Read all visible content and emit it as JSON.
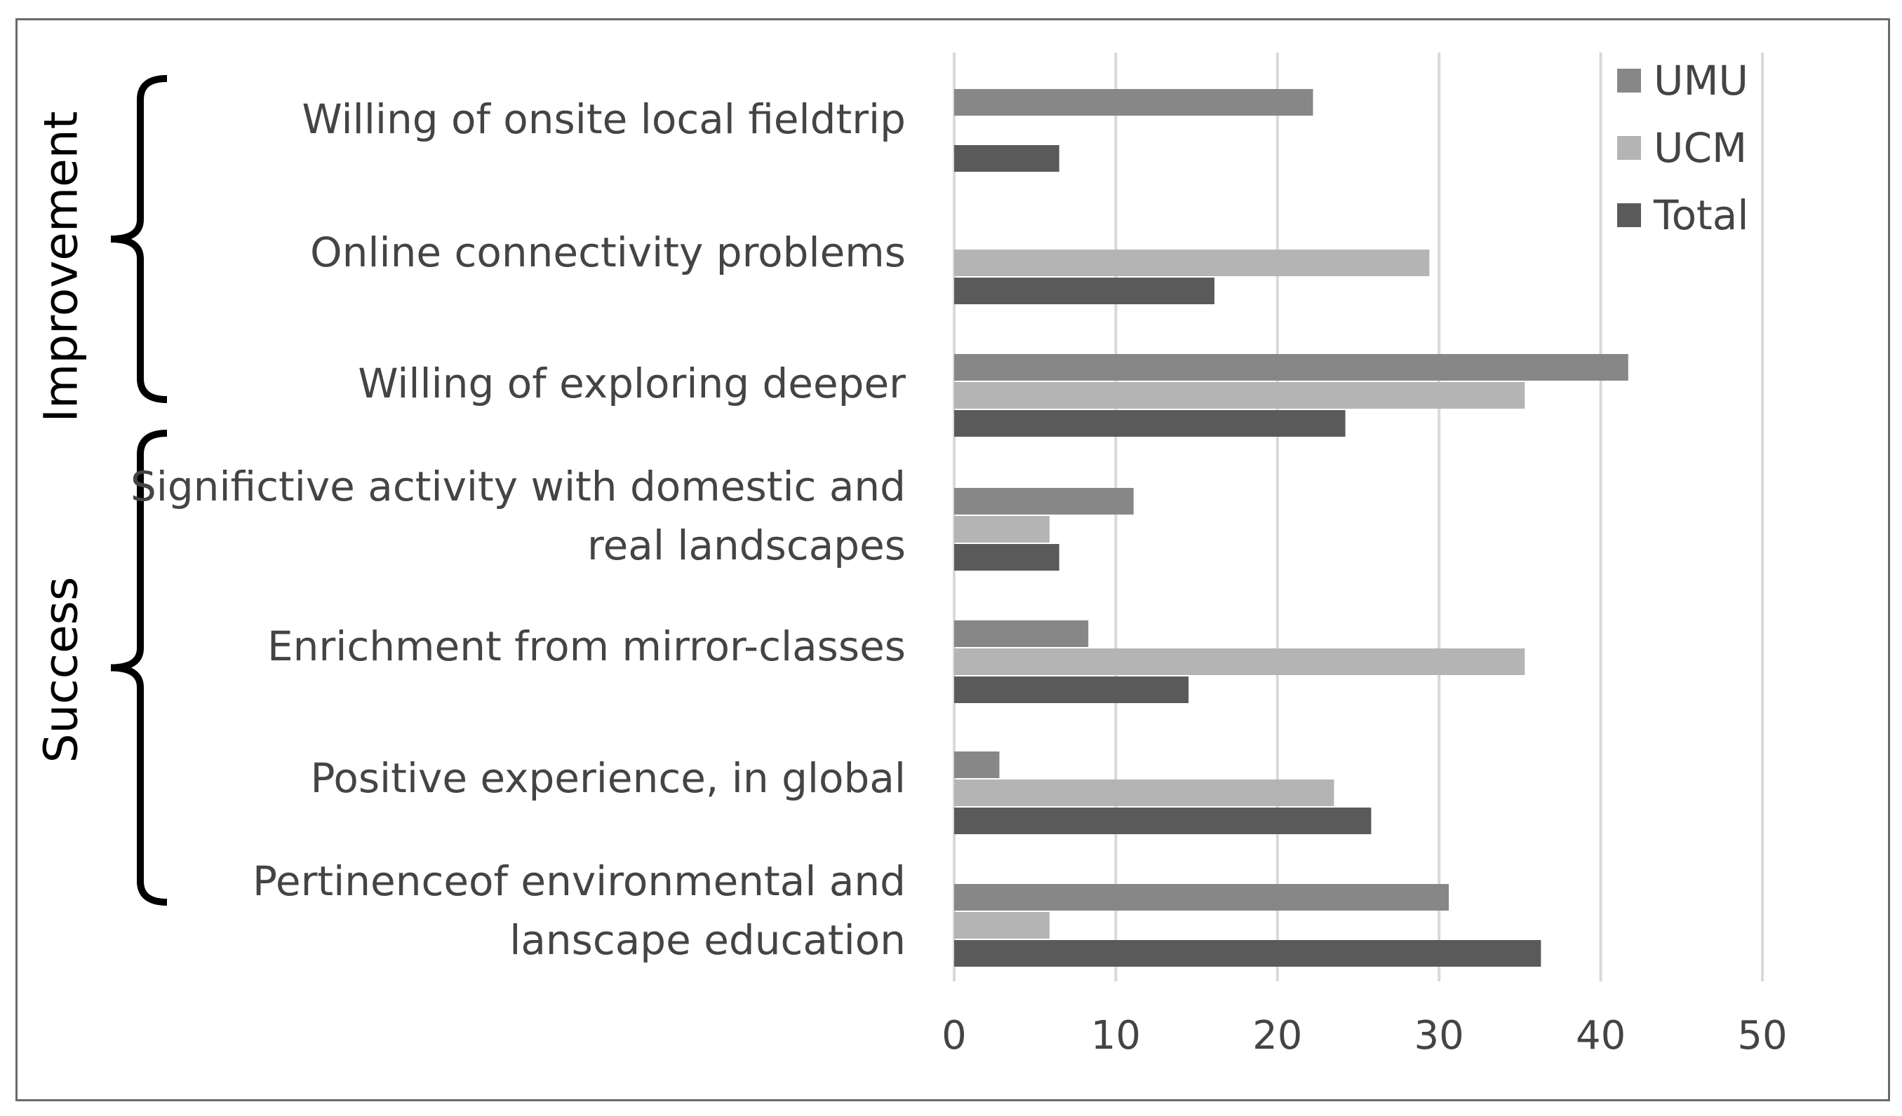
{
  "chart_data": {
    "type": "bar",
    "orientation": "horizontal",
    "categories": [
      "Willing of onsite local fieldtrip",
      "Online connectivity problems",
      "Willing of exploring deeper",
      "Significtive activity with domestic and\nreal landscapes",
      "Enrichment from mirror-classes",
      "Positive experience, in global",
      "Pertinenceof environmental and\nlanscape education"
    ],
    "series": [
      {
        "name": "UMU",
        "color": "#878787",
        "values": [
          22.2,
          0,
          41.7,
          11.1,
          8.3,
          2.8,
          30.6
        ]
      },
      {
        "name": "UCM",
        "color": "#b4b4b4",
        "values": [
          0,
          29.4,
          35.3,
          5.9,
          35.3,
          23.5,
          5.9
        ]
      },
      {
        "name": "Total",
        "color": "#5a5a5a",
        "values": [
          6.5,
          16.1,
          24.2,
          6.5,
          14.5,
          25.8,
          36.3
        ]
      }
    ],
    "xlim": [
      0,
      50
    ],
    "xticks": [
      0,
      10,
      20,
      30,
      40,
      50
    ],
    "grid": true,
    "legend": "top-right",
    "groups": [
      {
        "label": "Improvement",
        "categories": [
          0,
          1,
          2
        ]
      },
      {
        "label": "Success",
        "categories": [
          3,
          4,
          5,
          6
        ]
      }
    ]
  }
}
